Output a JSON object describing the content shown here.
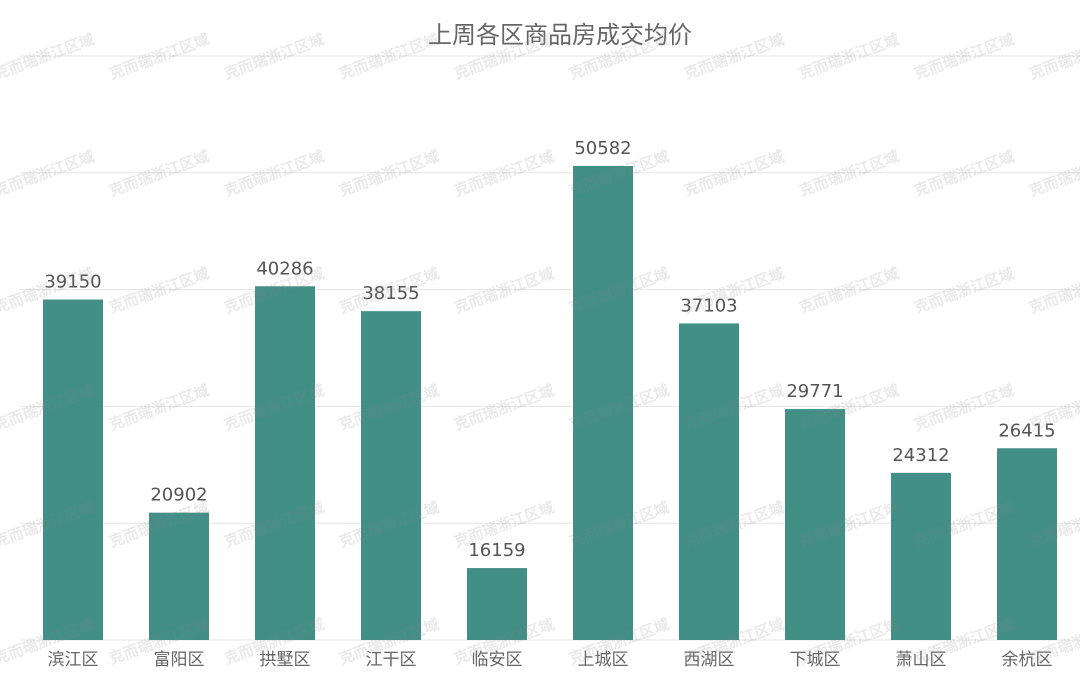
{
  "chart_data": {
    "type": "bar",
    "title": "上周各区商品房成交均价",
    "categories": [
      "滨江区",
      "富阳区",
      "拱墅区",
      "江干区",
      "临安区",
      "上城区",
      "西湖区",
      "下城区",
      "萧山区",
      "余杭区"
    ],
    "values": [
      39150,
      20902,
      40286,
      38155,
      16159,
      50582,
      37103,
      29771,
      24312,
      26415
    ],
    "color": "#428f86",
    "ylim": [
      10000,
      60000
    ],
    "yticks": [
      10000,
      20000,
      30000,
      40000,
      50000,
      60000
    ],
    "grid": true,
    "watermark": "克而瑞浙江区域"
  }
}
